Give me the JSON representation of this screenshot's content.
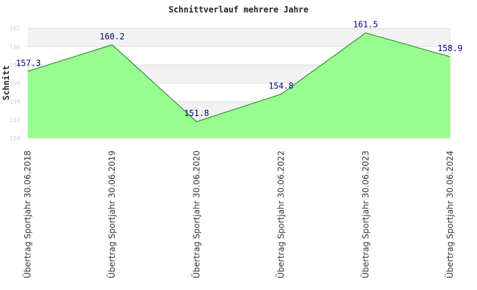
{
  "chart_data": {
    "type": "area",
    "title": "Schnittverlauf mehrere Jahre",
    "xlabel": "",
    "ylabel": "Schnitt",
    "categories": [
      "Übertrag Sportjahr 30.06.2018",
      "Übertrag Sportjahr 30.06.2019",
      "Übertrag Sportjahr 30.06.2020",
      "Übertrag Sportjahr 30.06.2022",
      "Übertrag Sportjahr 30.06.2023",
      "Übertrag Sportjahr 30.06.2024"
    ],
    "values": [
      157.3,
      160.2,
      151.8,
      154.8,
      161.5,
      158.9
    ],
    "value_labels": [
      "157.3",
      "160.2",
      "151.8",
      "154.8",
      "161.5",
      "158.9"
    ],
    "ylim": [
      150,
      162
    ],
    "yticks": [
      "150",
      "152",
      "154",
      "156",
      "158",
      "160",
      "162"
    ],
    "grid": "horizontal bands",
    "legend": "none",
    "colors": {
      "fill": "#98fc90",
      "line": "#1a7a1a",
      "band": "#f2f2f2",
      "label": "#000080"
    }
  }
}
